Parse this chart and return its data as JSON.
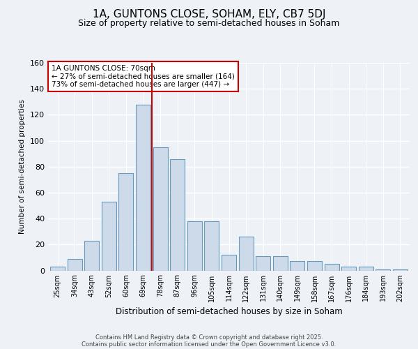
{
  "title1": "1A, GUNTONS CLOSE, SOHAM, ELY, CB7 5DJ",
  "title2": "Size of property relative to semi-detached houses in Soham",
  "xlabel": "Distribution of semi-detached houses by size in Soham",
  "ylabel": "Number of semi-detached properties",
  "categories": [
    "25sqm",
    "34sqm",
    "43sqm",
    "52sqm",
    "60sqm",
    "69sqm",
    "78sqm",
    "87sqm",
    "96sqm",
    "105sqm",
    "114sqm",
    "122sqm",
    "131sqm",
    "140sqm",
    "149sqm",
    "158sqm",
    "167sqm",
    "176sqm",
    "184sqm",
    "193sqm",
    "202sqm"
  ],
  "bar_heights": [
    3,
    9,
    23,
    53,
    75,
    128,
    95,
    86,
    38,
    38,
    12,
    26,
    11,
    11,
    7,
    7,
    5,
    3,
    3,
    1,
    1
  ],
  "property_label": "1A GUNTONS CLOSE: 70sqm",
  "pct_smaller": 27,
  "pct_larger": 73,
  "n_smaller": 164,
  "n_larger": 447,
  "bar_color": "#ccdaea",
  "bar_edge_color": "#6699bb",
  "vline_color": "#cc0000",
  "annotation_box_edge": "#cc0000",
  "ylim": [
    0,
    160
  ],
  "yticks": [
    0,
    20,
    40,
    60,
    80,
    100,
    120,
    140,
    160
  ],
  "footer_line1": "Contains HM Land Registry data © Crown copyright and database right 2025.",
  "footer_line2": "Contains public sector information licensed under the Open Government Licence v3.0.",
  "background_color": "#eef2f7",
  "plot_bg_color": "#eef2f7",
  "grid_color": "#ffffff",
  "vline_x_index": 5.5
}
